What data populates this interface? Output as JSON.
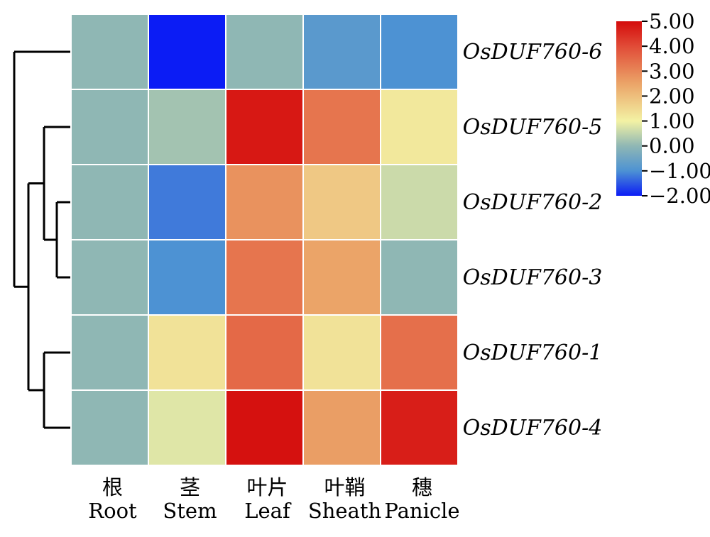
{
  "chart_data": {
    "type": "heatmap",
    "title": "",
    "columns": [
      {
        "zh": "根",
        "en": "Root"
      },
      {
        "zh": "茎",
        "en": "Stem"
      },
      {
        "zh": "叶片",
        "en": "Leaf"
      },
      {
        "zh": "叶鞘",
        "en": "Sheath"
      },
      {
        "zh": "穗",
        "en": "Panicle"
      }
    ],
    "rows": [
      "OsDUF760-6",
      "OsDUF760-5",
      "OsDUF760-2",
      "OsDUF760-3",
      "OsDUF760-1",
      "OsDUF760-4"
    ],
    "values": [
      [
        0.0,
        -2.0,
        0.0,
        -0.8,
        -1.0
      ],
      [
        0.0,
        0.2,
        4.8,
        3.3,
        1.2
      ],
      [
        0.0,
        -1.2,
        2.8,
        1.8,
        0.6
      ],
      [
        0.0,
        -1.0,
        3.3,
        2.5,
        0.0
      ],
      [
        0.0,
        1.3,
        3.5,
        1.3,
        3.4
      ],
      [
        0.0,
        0.8,
        4.9,
        2.6,
        4.7
      ]
    ],
    "colorbar": {
      "min": -2.0,
      "max": 5.0,
      "ticks": [
        "5.00",
        "4.00",
        "3.00",
        "2.00",
        "1.00",
        "0.00",
        "−1.00",
        "−2.00"
      ],
      "tick_values": [
        5,
        4,
        3,
        2,
        1,
        0,
        -1,
        -2
      ],
      "colors": [
        "#0b1cf5",
        "#4d92d3",
        "#8fb7b4",
        "#f3f2a4",
        "#eba468",
        "#e14b37",
        "#d40b0b"
      ],
      "color_stops": [
        -2,
        -1,
        0,
        1,
        2.5,
        4,
        5
      ],
      "position": "right"
    },
    "dendrogram": {
      "side": "left",
      "order": [
        "OsDUF760-6",
        "OsDUF760-5",
        "OsDUF760-2",
        "OsDUF760-3",
        "OsDUF760-1",
        "OsDUF760-4"
      ]
    }
  }
}
